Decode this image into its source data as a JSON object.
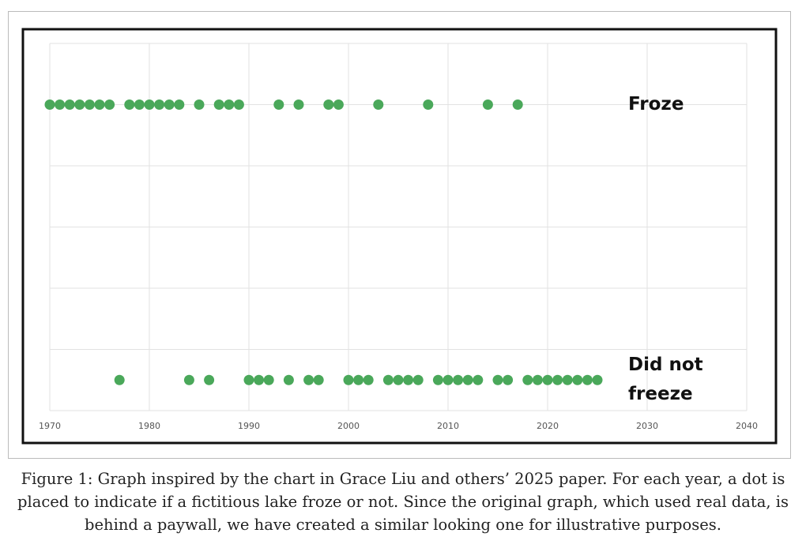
{
  "chart_data": {
    "type": "scatter",
    "xlim": [
      1970,
      2040
    ],
    "xticks": [
      1970,
      1980,
      1990,
      2000,
      2010,
      2020,
      2030,
      2040
    ],
    "ylim": [
      0,
      6
    ],
    "yticks": [
      0,
      1,
      2,
      3,
      4,
      5,
      6
    ],
    "ytick_labels": false,
    "grid": true,
    "series": [
      {
        "name": "Froze",
        "color": "#4aa85a",
        "x": [
          1970,
          1971,
          1972,
          1973,
          1974,
          1975,
          1976,
          1978,
          1979,
          1980,
          1981,
          1982,
          1983,
          1985,
          1987,
          1988,
          1989,
          1993,
          1995,
          1998,
          1999,
          2003,
          2008,
          2014,
          2017
        ],
        "values": [
          5,
          5,
          5,
          5,
          5,
          5,
          5,
          5,
          5,
          5,
          5,
          5,
          5,
          5,
          5,
          5,
          5,
          5,
          5,
          5,
          5,
          5,
          5,
          5,
          5
        ]
      },
      {
        "name": "Did not freeze",
        "color": "#4aa85a",
        "x": [
          1977,
          1984,
          1986,
          1990,
          1991,
          1992,
          1994,
          1996,
          1997,
          2000,
          2001,
          2002,
          2004,
          2005,
          2006,
          2007,
          2009,
          2010,
          2011,
          2012,
          2013,
          2015,
          2016,
          2018,
          2019,
          2020,
          2021,
          2022,
          2023,
          2024,
          2025
        ],
        "values": [
          0.5,
          0.5,
          0.5,
          0.5,
          0.5,
          0.5,
          0.5,
          0.5,
          0.5,
          0.5,
          0.5,
          0.5,
          0.5,
          0.5,
          0.5,
          0.5,
          0.5,
          0.5,
          0.5,
          0.5,
          0.5,
          0.5,
          0.5,
          0.5,
          0.5,
          0.5,
          0.5,
          0.5,
          0.5,
          0.5,
          0.5
        ]
      }
    ]
  },
  "caption": "Figure 1: Graph inspired by the chart in Grace Liu and others’ 2025 paper. For each year, a dot is placed to indicate if a fictitious lake froze or not. Since the original graph, which used real data, is behind a paywall, we have created a similar looking one for illustrative purposes."
}
